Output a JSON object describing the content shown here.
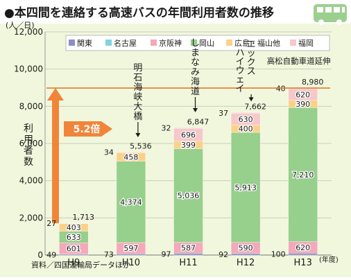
{
  "title": "●本四間を連絡する高速バスの年間利用者数の推移",
  "unit_label": "(人／日)",
  "source": "資料／四国運輸局データほか",
  "growth_label": "5.2倍",
  "icon": "bus-icon",
  "colors": {
    "background": "#f1f7dc",
    "title_bar": "#ffffff",
    "grid": "#c9ccc0",
    "reference_line": "#e07a2e",
    "arrow": "#f0853a",
    "bus": "#9ccf8f",
    "series": [
      "#8a8fc8",
      "#7fd4dd",
      "#f3a9ba",
      "#97cf8c",
      "#fbd18a",
      "#f7c7c9"
    ]
  },
  "chart_data": {
    "type": "bar",
    "stacked": true,
    "categories": [
      "H9",
      "H10",
      "H11",
      "H12",
      "H13"
    ],
    "x_unit_label": "(年度)",
    "ylabel": "利用者数",
    "ylim": [
      0,
      12000
    ],
    "yticks": [
      0,
      2000,
      4000,
      6000,
      8000,
      10000,
      12000
    ],
    "ytick_labels": [
      "0",
      "2,000",
      "4,000",
      "6,000",
      "8,000",
      "10,000",
      "12,000"
    ],
    "grid": true,
    "legend_position": "top",
    "series": [
      {
        "name": "関東",
        "values": [
          49,
          73,
          97,
          92,
          100
        ],
        "labels": [
          "49",
          "73",
          "97",
          "92",
          "100"
        ]
      },
      {
        "name": "名古屋",
        "values": [
          0,
          0,
          0,
          0,
          0
        ],
        "labels": [
          "",
          "",
          "",
          "",
          ""
        ]
      },
      {
        "name": "京阪神",
        "values": [
          601,
          597,
          587,
          590,
          620
        ],
        "labels": [
          "601",
          "597",
          "587",
          "590",
          "620"
        ]
      },
      {
        "name": "岡山",
        "values": [
          633,
          4374,
          5036,
          5913,
          7210
        ],
        "labels": [
          "633",
          "4,374",
          "5,036",
          "5,913",
          "7,210"
        ]
      },
      {
        "name": "広島・福山他",
        "values": [
          403,
          458,
          399,
          400,
          390
        ],
        "labels": [
          "403",
          "458",
          "399",
          "400",
          "390"
        ]
      },
      {
        "name": "福岡",
        "values": [
          27,
          34,
          696,
          630,
          620
        ],
        "labels": [
          "27",
          "34",
          "696",
          "630",
          "620"
        ]
      },
      {
        "name": "",
        "values": [
          0,
          0,
          32,
          37,
          40
        ],
        "labels": [
          "",
          "",
          "32",
          "37",
          "40"
        ]
      }
    ],
    "totals": [
      "1,713",
      "5,536",
      "6,847",
      "7,662",
      "8,980"
    ],
    "reference_value": 8980,
    "annotations": [
      {
        "category": "H10",
        "text": "明石海峡大橋"
      },
      {
        "category": "H11",
        "text": "しまなみ海道"
      },
      {
        "category": "H12",
        "text": "エックスハイウェイ"
      },
      {
        "category": "H13",
        "text": "高松自動車道延伸"
      }
    ]
  }
}
